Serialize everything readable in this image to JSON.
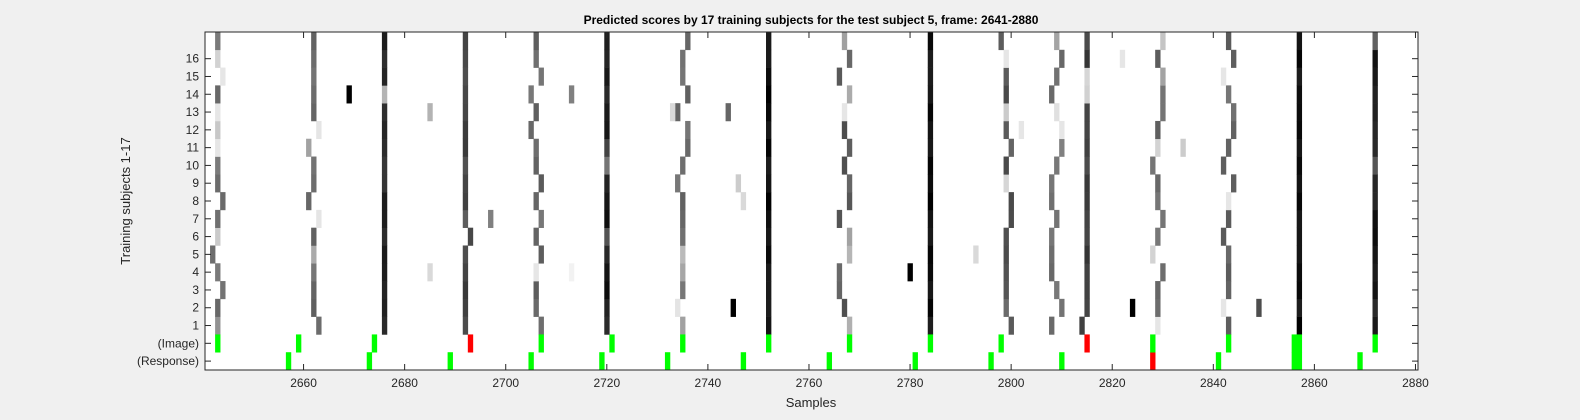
{
  "chart_data": {
    "type": "heatmap",
    "title": "Predicted scores by 17 training subjects for the test subject 5, frame: 2641-2880",
    "xlabel": "Samples",
    "ylabel": "Training subjects 1-17",
    "xlim": [
      2641,
      2880
    ],
    "xticks": [
      2660,
      2680,
      2700,
      2720,
      2740,
      2760,
      2780,
      2800,
      2820,
      2840,
      2860,
      2880
    ],
    "row_labels": [
      "(Response)",
      "(Image)",
      "1",
      "2",
      "3",
      "4",
      "5",
      "6",
      "7",
      "8",
      "9",
      "10",
      "11",
      "12",
      "13",
      "14",
      "15",
      "16",
      ""
    ],
    "colors": {
      "background": "#ffffff",
      "score": "#000000",
      "correct": "#00ff00",
      "error": "#ff0000",
      "figure": "#f0f0f0"
    },
    "response_marks": [
      {
        "x": 2657,
        "c": "correct"
      },
      {
        "x": 2673,
        "c": "correct"
      },
      {
        "x": 2689,
        "c": "correct"
      },
      {
        "x": 2705,
        "c": "correct"
      },
      {
        "x": 2719,
        "c": "correct"
      },
      {
        "x": 2732,
        "c": "correct"
      },
      {
        "x": 2747,
        "c": "correct"
      },
      {
        "x": 2764,
        "c": "correct"
      },
      {
        "x": 2781,
        "c": "correct"
      },
      {
        "x": 2796,
        "c": "correct"
      },
      {
        "x": 2810,
        "c": "correct"
      },
      {
        "x": 2828,
        "c": "error"
      },
      {
        "x": 2841,
        "c": "correct"
      },
      {
        "x": 2856,
        "c": "correct",
        "w": 2
      },
      {
        "x": 2869,
        "c": "correct"
      }
    ],
    "image_marks": [
      {
        "x": 2643,
        "c": "correct"
      },
      {
        "x": 2659,
        "c": "correct"
      },
      {
        "x": 2674,
        "c": "correct"
      },
      {
        "x": 2693,
        "c": "error"
      },
      {
        "x": 2707,
        "c": "correct"
      },
      {
        "x": 2721,
        "c": "correct"
      },
      {
        "x": 2735,
        "c": "correct"
      },
      {
        "x": 2752,
        "c": "correct"
      },
      {
        "x": 2768,
        "c": "correct"
      },
      {
        "x": 2784,
        "c": "correct"
      },
      {
        "x": 2798,
        "c": "correct"
      },
      {
        "x": 2815,
        "c": "error"
      },
      {
        "x": 2828,
        "c": "correct"
      },
      {
        "x": 2843,
        "c": "correct"
      },
      {
        "x": 2856,
        "c": "correct",
        "w": 2
      },
      {
        "x": 2872,
        "c": "correct"
      }
    ],
    "columns": [
      {
        "x": 2643,
        "l": 0.4,
        "v": 0.25,
        "s": 7
      },
      {
        "x": 2662,
        "l": 0.35,
        "v": 0.3,
        "s": 11
      },
      {
        "x": 2676,
        "l": 0.1,
        "v": 0.05,
        "s": 13
      },
      {
        "x": 2692,
        "l": 0.2,
        "v": 0.2,
        "s": 19
      },
      {
        "x": 2706,
        "l": 0.35,
        "v": 0.3,
        "s": 23
      },
      {
        "x": 2720,
        "l": 0.05,
        "v": 0.1,
        "s": 29
      },
      {
        "x": 2735,
        "l": 0.35,
        "v": 0.3,
        "s": 31
      },
      {
        "x": 2752,
        "l": 0.0,
        "v": 0.05,
        "s": 37
      },
      {
        "x": 2767,
        "l": 0.3,
        "v": 0.4,
        "s": 41
      },
      {
        "x": 2784,
        "l": 0.0,
        "v": 0.05,
        "s": 43
      },
      {
        "x": 2799,
        "l": 0.25,
        "v": 0.35,
        "s": 47
      },
      {
        "x": 2809,
        "l": 0.4,
        "v": 0.3,
        "s": 53
      },
      {
        "x": 2815,
        "l": 0.2,
        "v": 0.2,
        "s": 59
      },
      {
        "x": 2829,
        "l": 0.35,
        "v": 0.3,
        "s": 61
      },
      {
        "x": 2843,
        "l": 0.35,
        "v": 0.35,
        "s": 67
      },
      {
        "x": 2857,
        "l": 0.0,
        "v": 0.1,
        "s": 71
      },
      {
        "x": 2872,
        "l": 0.05,
        "v": 0.1,
        "s": 73
      }
    ],
    "extra_cells": [
      {
        "x": 2669,
        "row": 15,
        "g": 0.0
      },
      {
        "x": 2685,
        "row": 14,
        "g": 0.7
      },
      {
        "x": 2685,
        "row": 5,
        "g": 0.85
      },
      {
        "x": 2697,
        "row": 8,
        "g": 0.5
      },
      {
        "x": 2713,
        "row": 15,
        "g": 0.5
      },
      {
        "x": 2713,
        "row": 5,
        "g": 0.95
      },
      {
        "x": 2733,
        "row": 14,
        "g": 0.85
      },
      {
        "x": 2744,
        "row": 14,
        "g": 0.4
      },
      {
        "x": 2746,
        "row": 10,
        "g": 0.8
      },
      {
        "x": 2747,
        "row": 9,
        "g": 0.85
      },
      {
        "x": 2745,
        "row": 3,
        "g": 0.0
      },
      {
        "x": 2780,
        "row": 5,
        "g": 0.0
      },
      {
        "x": 2793,
        "row": 6,
        "g": 0.85
      },
      {
        "x": 2802,
        "row": 13,
        "g": 0.9
      },
      {
        "x": 2834,
        "row": 12,
        "g": 0.8
      },
      {
        "x": 2822,
        "row": 17,
        "g": 0.9
      },
      {
        "x": 2849,
        "row": 3,
        "g": 0.3
      },
      {
        "x": 2824,
        "row": 3,
        "g": 0.0
      }
    ]
  }
}
